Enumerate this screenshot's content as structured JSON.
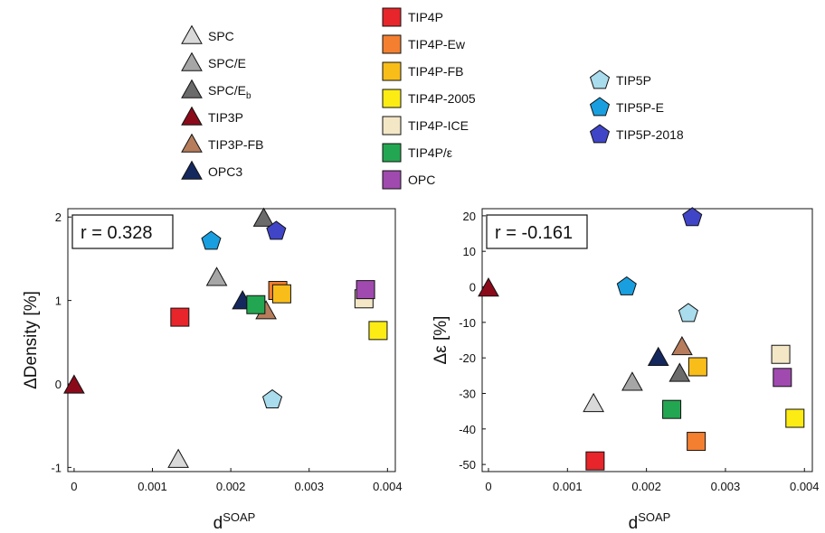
{
  "chart_data": [
    {
      "type": "scatter",
      "xlabel": "d",
      "xlabel_sup": "SOAP",
      "ylabel": "ΔDensity [%]",
      "xlim": [
        -8e-05,
        0.0041
      ],
      "ylim": [
        -1.05,
        2.1
      ],
      "xticks": [
        0,
        0.001,
        0.002,
        0.003,
        0.004
      ],
      "xtick_labels": [
        "0",
        "0.001",
        "0.002",
        "0.003",
        "0.004"
      ],
      "yticks": [
        -1,
        0,
        1,
        2
      ],
      "ytick_labels": [
        "-1",
        "0",
        "1",
        "2"
      ],
      "annotation": "r = 0.328",
      "points": [
        {
          "series": "SPC",
          "x": 0.00133,
          "y": -0.91
        },
        {
          "series": "SPC/E",
          "x": 0.00182,
          "y": 1.27
        },
        {
          "series": "SPC/Eb",
          "x": 0.00242,
          "y": 1.98
        },
        {
          "series": "TIP3P",
          "x": 0.0,
          "y": -0.02
        },
        {
          "series": "TIP3P-FB",
          "x": 0.00245,
          "y": 0.87
        },
        {
          "series": "OPC3",
          "x": 0.00215,
          "y": 0.99
        },
        {
          "series": "TIP4P",
          "x": 0.00135,
          "y": 0.8
        },
        {
          "series": "TIP4P-Ew",
          "x": 0.0026,
          "y": 1.12
        },
        {
          "series": "TIP4P-FB",
          "x": 0.00265,
          "y": 1.08
        },
        {
          "series": "TIP4P-2005",
          "x": 0.00388,
          "y": 0.64
        },
        {
          "series": "TIP4P-ICE",
          "x": 0.0037,
          "y": 1.02
        },
        {
          "series": "TIP4P/ε",
          "x": 0.00232,
          "y": 0.95
        },
        {
          "series": "OPC",
          "x": 0.00372,
          "y": 1.13
        },
        {
          "series": "TIP5P",
          "x": 0.00253,
          "y": -0.19
        },
        {
          "series": "TIP5P-E",
          "x": 0.00175,
          "y": 1.71
        },
        {
          "series": "TIP5P-2018",
          "x": 0.00258,
          "y": 1.83
        }
      ]
    },
    {
      "type": "scatter",
      "xlabel": "d",
      "xlabel_sup": "SOAP",
      "ylabel": "Δε [%]",
      "xlim": [
        -8e-05,
        0.0041
      ],
      "ylim": [
        -52,
        22
      ],
      "xticks": [
        0,
        0.001,
        0.002,
        0.003,
        0.004
      ],
      "xtick_labels": [
        "0",
        "0.001",
        "0.002",
        "0.003",
        "0.004"
      ],
      "yticks": [
        20,
        10,
        0,
        -10,
        -20,
        -30,
        -40,
        -50
      ],
      "ytick_labels": [
        "20",
        "10",
        "0",
        "-10",
        "-20",
        "-30",
        "-40",
        "-50"
      ],
      "annotation": "r = -0.161",
      "points": [
        {
          "series": "SPC",
          "x": 0.00133,
          "y": -33.0
        },
        {
          "series": "SPC/E",
          "x": 0.00182,
          "y": -27.0
        },
        {
          "series": "SPC/Eb",
          "x": 0.00242,
          "y": -24.5
        },
        {
          "series": "TIP3P",
          "x": 0.0,
          "y": -0.5
        },
        {
          "series": "TIP3P-FB",
          "x": 0.00245,
          "y": -17.0
        },
        {
          "series": "OPC3",
          "x": 0.00215,
          "y": -20.0
        },
        {
          "series": "TIP4P",
          "x": 0.00135,
          "y": -49.0
        },
        {
          "series": "TIP4P-Ew",
          "x": 0.00263,
          "y": -43.5
        },
        {
          "series": "TIP4P-FB",
          "x": 0.00265,
          "y": -22.5
        },
        {
          "series": "TIP4P-2005",
          "x": 0.00388,
          "y": -37.0
        },
        {
          "series": "TIP4P-ICE",
          "x": 0.0037,
          "y": -19.0
        },
        {
          "series": "TIP4P/ε",
          "x": 0.00232,
          "y": -34.5
        },
        {
          "series": "OPC",
          "x": 0.00372,
          "y": -25.5
        },
        {
          "series": "TIP5P",
          "x": 0.00253,
          "y": -7.5
        },
        {
          "series": "TIP5P-E",
          "x": 0.00175,
          "y": 0.0
        },
        {
          "series": "TIP5P-2018",
          "x": 0.00258,
          "y": 19.5
        }
      ]
    }
  ],
  "legend": [
    {
      "name": "SPC",
      "main": "SPC",
      "sub": "",
      "marker": "triangle",
      "color": "#d9d9d9",
      "col": 0,
      "row": 0
    },
    {
      "name": "SPC/E",
      "main": "SPC/E",
      "sub": "",
      "marker": "triangle",
      "color": "#a6a6a6",
      "col": 0,
      "row": 1
    },
    {
      "name": "SPC/Eb",
      "main": "SPC/E",
      "sub": "b",
      "marker": "triangle",
      "color": "#6b6b6b",
      "col": 0,
      "row": 2
    },
    {
      "name": "TIP3P",
      "main": "TIP3P",
      "sub": "",
      "marker": "triangle",
      "color": "#8b0a1a",
      "col": 0,
      "row": 3
    },
    {
      "name": "TIP3P-FB",
      "main": "TIP3P-FB",
      "sub": "",
      "marker": "triangle",
      "color": "#b67c5c",
      "col": 0,
      "row": 4
    },
    {
      "name": "OPC3",
      "main": "OPC3",
      "sub": "",
      "marker": "triangle",
      "color": "#14285e",
      "col": 0,
      "row": 5
    },
    {
      "name": "TIP4P",
      "main": "TIP4P",
      "sub": "",
      "marker": "square",
      "color": "#e8252a",
      "col": 1,
      "row": 0
    },
    {
      "name": "TIP4P-Ew",
      "main": "TIP4P-Ew",
      "sub": "",
      "marker": "square",
      "color": "#f47f30",
      "col": 1,
      "row": 1
    },
    {
      "name": "TIP4P-FB",
      "main": "TIP4P-FB",
      "sub": "",
      "marker": "square",
      "color": "#f9bd1a",
      "col": 1,
      "row": 2
    },
    {
      "name": "TIP4P-2005",
      "main": "TIP4P-2005",
      "sub": "",
      "marker": "square",
      "color": "#fcec14",
      "col": 1,
      "row": 3
    },
    {
      "name": "TIP4P-ICE",
      "main": "TIP4P-ICE",
      "sub": "",
      "marker": "square",
      "color": "#f3e7c6",
      "col": 1,
      "row": 4
    },
    {
      "name": "TIP4P/ε",
      "main": "TIP4P/ε",
      "sub": "",
      "marker": "square",
      "color": "#23a651",
      "col": 1,
      "row": 5
    },
    {
      "name": "OPC",
      "main": "OPC",
      "sub": "",
      "marker": "square",
      "color": "#a04aaf",
      "col": 1,
      "row": 6
    },
    {
      "name": "TIP5P",
      "main": "TIP5P",
      "sub": "",
      "marker": "pentagon",
      "color": "#a9dcec",
      "col": 2,
      "row": 0
    },
    {
      "name": "TIP5P-E",
      "main": "TIP5P-E",
      "sub": "",
      "marker": "pentagon",
      "color": "#199fe0",
      "col": 2,
      "row": 1
    },
    {
      "name": "TIP5P-2018",
      "main": "TIP5P-2018",
      "sub": "",
      "marker": "pentagon",
      "color": "#4045c8",
      "col": 2,
      "row": 2
    }
  ]
}
